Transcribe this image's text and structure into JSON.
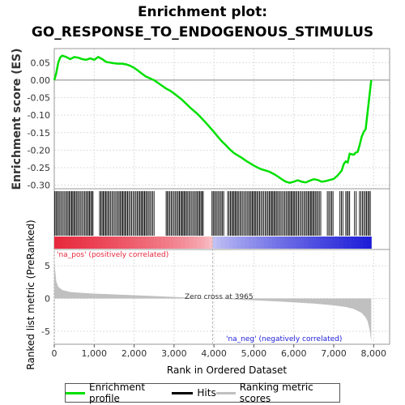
{
  "title_line1": "Enrichment plot:",
  "title_line2": "GO_RESPONSE_TO_ENDOGENOUS_STIMULUS",
  "colors": {
    "enrichment": "#00e000",
    "hits": "#000000",
    "metric": "#c0c0c0",
    "pos": "#e8283c",
    "neg": "#1c1cd8",
    "grid": "#dddddd"
  },
  "legend": {
    "enrichment": "Enrichment profile",
    "hits": "Hits",
    "metric": "Ranking metric scores"
  },
  "annotations": {
    "pos_label": "'na_pos' (positively correlated)",
    "neg_label": "'na_neg' (negatively correlated)",
    "zero_cross": "Zero cross at 3965"
  },
  "chart_data": {
    "type": "line",
    "xlabel": "Rank in Ordered Dataset",
    "xlim": [
      0,
      8400
    ],
    "x_ticks": [
      0,
      1000,
      2000,
      3000,
      4000,
      5000,
      6000,
      7000,
      8000
    ],
    "x_tick_labels": [
      "0",
      "1,000",
      "2,000",
      "3,000",
      "4,000",
      "5,000",
      "6,000",
      "7,000",
      "8,000"
    ],
    "es": {
      "ylabel": "Enrichment score (ES)",
      "ylim": [
        -0.31,
        0.09
      ],
      "y_ticks": [
        0.05,
        0.0,
        -0.05,
        -0.1,
        -0.15,
        -0.2,
        -0.25,
        -0.3
      ],
      "y_tick_labels": [
        "0.05",
        "0.00",
        "-0.05",
        "-0.10",
        "-0.15",
        "-0.20",
        "-0.25",
        "-0.30"
      ],
      "x": [
        0,
        50,
        100,
        150,
        200,
        300,
        400,
        500,
        600,
        700,
        800,
        900,
        1000,
        1100,
        1200,
        1300,
        1400,
        1500,
        1600,
        1700,
        1800,
        1900,
        2000,
        2100,
        2200,
        2300,
        2400,
        2500,
        2600,
        2700,
        2800,
        2900,
        3000,
        3100,
        3200,
        3300,
        3400,
        3500,
        3600,
        3700,
        3800,
        3900,
        4000,
        4100,
        4200,
        4300,
        4400,
        4500,
        4600,
        4700,
        4800,
        4900,
        5000,
        5100,
        5200,
        5300,
        5400,
        5500,
        5600,
        5700,
        5800,
        5900,
        6000,
        6100,
        6200,
        6300,
        6400,
        6500,
        6600,
        6700,
        6800,
        6900,
        7000,
        7100,
        7200,
        7250,
        7300,
        7350,
        7400,
        7500,
        7550,
        7600,
        7650,
        7700,
        7750,
        7800,
        7820,
        7840,
        7860,
        7880,
        7900,
        7920,
        7940
      ],
      "y": [
        0.0,
        0.02,
        0.05,
        0.065,
        0.07,
        0.066,
        0.06,
        0.066,
        0.064,
        0.06,
        0.058,
        0.062,
        0.058,
        0.066,
        0.06,
        0.052,
        0.05,
        0.048,
        0.047,
        0.047,
        0.045,
        0.041,
        0.035,
        0.027,
        0.018,
        0.01,
        0.005,
        0.0,
        -0.008,
        -0.016,
        -0.024,
        -0.03,
        -0.038,
        -0.047,
        -0.056,
        -0.067,
        -0.078,
        -0.088,
        -0.098,
        -0.11,
        -0.122,
        -0.135,
        -0.148,
        -0.162,
        -0.175,
        -0.186,
        -0.198,
        -0.208,
        -0.215,
        -0.222,
        -0.23,
        -0.237,
        -0.244,
        -0.25,
        -0.255,
        -0.258,
        -0.262,
        -0.268,
        -0.275,
        -0.283,
        -0.29,
        -0.293,
        -0.29,
        -0.286,
        -0.29,
        -0.292,
        -0.287,
        -0.283,
        -0.285,
        -0.29,
        -0.288,
        -0.285,
        -0.282,
        -0.272,
        -0.258,
        -0.24,
        -0.232,
        -0.235,
        -0.21,
        -0.213,
        -0.207,
        -0.205,
        -0.185,
        -0.162,
        -0.148,
        -0.14,
        -0.12,
        -0.1,
        -0.08,
        -0.06,
        -0.04,
        -0.02,
        0.0
      ]
    },
    "hits": {
      "label": "Hits",
      "segments": [
        [
          10,
          1000
        ],
        [
          1120,
          2520
        ],
        [
          2800,
          3760
        ],
        [
          3950,
          4260
        ],
        [
          4330,
          6700
        ],
        [
          6830,
          7000
        ],
        [
          7150,
          7250
        ],
        [
          7300,
          7420
        ],
        [
          7520,
          7600
        ],
        [
          7640,
          7940
        ]
      ]
    },
    "metric": {
      "ylabel": "Ranked list metric (PreRanked)",
      "ylim": [
        -7,
        7.5
      ],
      "y_ticks": [
        5,
        0,
        -5
      ],
      "y_tick_labels": [
        "5",
        "0",
        "-5"
      ],
      "zero_cross": 3965,
      "x": [
        0,
        20,
        50,
        100,
        200,
        400,
        700,
        1000,
        1500,
        2000,
        2500,
        3000,
        3500,
        3965,
        4500,
        5000,
        5500,
        6000,
        6500,
        7000,
        7300,
        7500,
        7700,
        7800,
        7850,
        7900,
        7940
      ],
      "y": [
        6.5,
        4.5,
        2.6,
        1.8,
        1.3,
        1.0,
        0.85,
        0.75,
        0.62,
        0.5,
        0.38,
        0.24,
        0.1,
        0.0,
        -0.14,
        -0.28,
        -0.42,
        -0.58,
        -0.78,
        -1.05,
        -1.3,
        -1.6,
        -2.2,
        -2.9,
        -3.5,
        -4.8,
        -6.5
      ]
    }
  }
}
